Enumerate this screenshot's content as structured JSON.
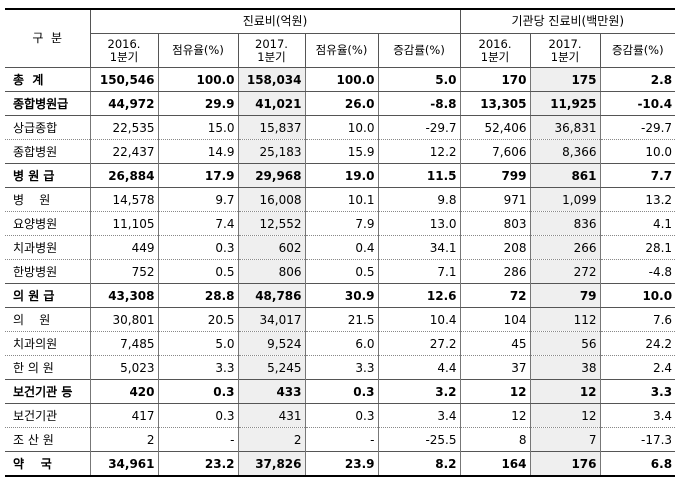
{
  "table": {
    "header": {
      "row_label": "구  분",
      "groups": [
        "진료비(억원)",
        "기관당 진료비(백만원)"
      ],
      "columns": [
        "2016.\n1분기",
        "점유율(%)",
        "2017.\n1분기",
        "점유율(%)",
        "증감률(%)",
        "2016.\n1분기",
        "2017.\n1분기",
        "증감률(%)"
      ]
    },
    "rows": [
      [
        "총  계",
        "150,546",
        "100.0",
        "158,034",
        "100.0",
        "5.0",
        "170",
        "175",
        "2.8"
      ],
      [
        "종합병원급",
        "44,972",
        "29.9",
        "41,021",
        "26.0",
        "-8.8",
        "13,305",
        "11,925",
        "-10.4"
      ],
      [
        "상급종합",
        "22,535",
        "15.0",
        "15,837",
        "10.0",
        "-29.7",
        "52,406",
        "36,831",
        "-29.7"
      ],
      [
        "종합병원",
        "22,437",
        "14.9",
        "25,183",
        "15.9",
        "12.2",
        "7,606",
        "8,366",
        "10.0"
      ],
      [
        "병 원 급",
        "26,884",
        "17.9",
        "29,968",
        "19.0",
        "11.5",
        "799",
        "861",
        "7.7"
      ],
      [
        "병    원",
        "14,578",
        "9.7",
        "16,008",
        "10.1",
        "9.8",
        "971",
        "1,099",
        "13.2"
      ],
      [
        "요양병원",
        "11,105",
        "7.4",
        "12,552",
        "7.9",
        "13.0",
        "803",
        "836",
        "4.1"
      ],
      [
        "치과병원",
        "449",
        "0.3",
        "602",
        "0.4",
        "34.1",
        "208",
        "266",
        "28.1"
      ],
      [
        "한방병원",
        "752",
        "0.5",
        "806",
        "0.5",
        "7.1",
        "286",
        "272",
        "-4.8"
      ],
      [
        "의 원 급",
        "43,308",
        "28.8",
        "48,786",
        "30.9",
        "12.6",
        "72",
        "79",
        "10.0"
      ],
      [
        "의    원",
        "30,801",
        "20.5",
        "34,017",
        "21.5",
        "10.4",
        "104",
        "112",
        "7.6"
      ],
      [
        "치과의원",
        "7,485",
        "5.0",
        "9,524",
        "6.0",
        "27.2",
        "45",
        "56",
        "24.2"
      ],
      [
        "한 의 원",
        "5,023",
        "3.3",
        "5,245",
        "3.3",
        "4.4",
        "37",
        "38",
        "2.4"
      ],
      [
        "보건기관 등",
        "420",
        "0.3",
        "433",
        "0.3",
        "3.2",
        "12",
        "12",
        "3.3"
      ],
      [
        "보건기관",
        "417",
        "0.3",
        "431",
        "0.3",
        "3.4",
        "12",
        "12",
        "3.4"
      ],
      [
        "조 산 원",
        "2",
        "-",
        "2",
        "-",
        "-25.5",
        "8",
        "7",
        "-17.3"
      ],
      [
        "약    국",
        "34,961",
        "23.2",
        "37,826",
        "23.9",
        "8.2",
        "164",
        "176",
        "6.8"
      ]
    ]
  }
}
